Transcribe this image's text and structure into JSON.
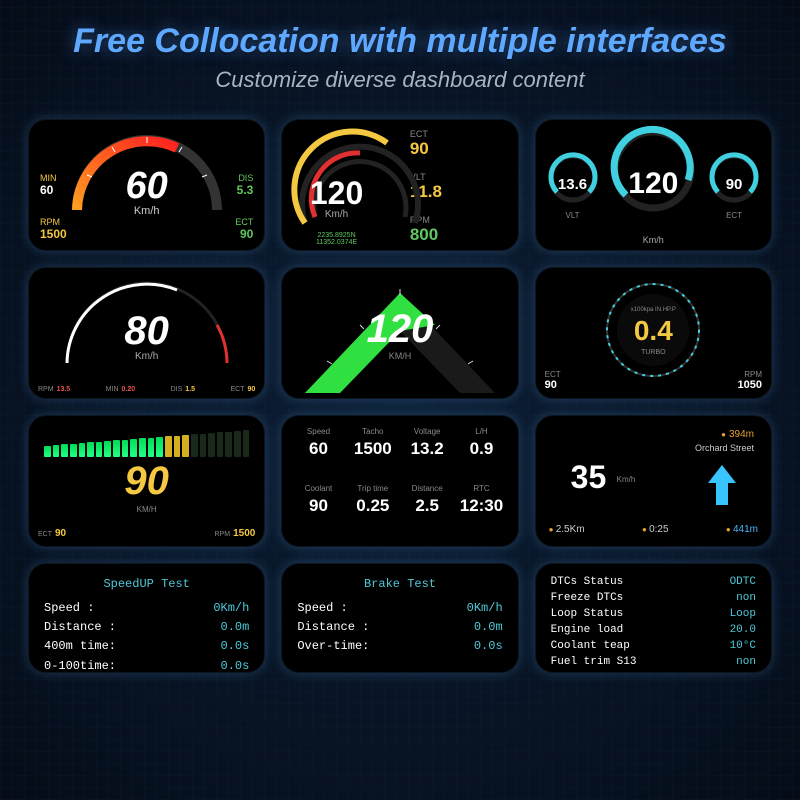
{
  "header": {
    "title": "Free Collocation with multiple interfaces",
    "subtitle": "Customize diverse dashboard content",
    "title_color": "#5fa8ff",
    "subtitle_color": "#a8b4c2"
  },
  "cards": {
    "c1": {
      "speed": "60",
      "unit": "Km/h",
      "min_label": "MIN",
      "min_value": "60",
      "dis_label": "DIS",
      "dis_value": "5.3",
      "rpm_label": "RPM",
      "rpm_value": "1500",
      "ect_label": "ECT",
      "ect_value": "90",
      "arc_color_start": "#ff2020",
      "arc_color_end": "#ffa020"
    },
    "c2": {
      "speed": "120",
      "unit": "Km/h",
      "coord1": "2235.8925N",
      "coord2": "11352.0374E",
      "ect_label": "ECT",
      "ect_value": "90",
      "vlt_label": "VLT",
      "vlt_value": "11.8",
      "rpm_label": "RPM",
      "rpm_value": "800",
      "arc_outer": "#f5c842",
      "arc_inner": "#e03030"
    },
    "c3": {
      "left_value": "13.6",
      "left_label": "VLT",
      "left_color": "#40d0e0",
      "center_value": "120",
      "center_label": "Km/h",
      "center_color": "#40d0e0",
      "right_value": "90",
      "right_label": "ECT",
      "right_color": "#40d0e0"
    },
    "c4": {
      "speed": "80",
      "unit": "Km/h",
      "bottom": [
        {
          "label": "RPM",
          "value": "13.5",
          "color": "#e85050"
        },
        {
          "label": "MIN",
          "value": "0.20",
          "color": "#e85050"
        },
        {
          "label": "DIS",
          "value": "1.5",
          "color": "#f5c842"
        },
        {
          "label": "ECT",
          "value": "90",
          "color": "#f5c842"
        }
      ]
    },
    "c5": {
      "speed": "120",
      "unit": "KM/H",
      "fill_color": "#30e040"
    },
    "c6": {
      "value": "0.4",
      "pre": "x100kpa IN.HP.P",
      "turbo": "TURBO",
      "ect_label": "ECT",
      "ect_value": "90",
      "rpm_label": "RPM",
      "rpm_value": "1050"
    },
    "c7": {
      "speed": "90",
      "unit": "KM/H",
      "ect_label": "ECT",
      "ect_value": "90",
      "rpm_label": "RPM",
      "rpm_value": "1500",
      "segments_on": 14,
      "segments_total": 24
    },
    "c8": {
      "cells": [
        {
          "label": "Speed",
          "value": "60"
        },
        {
          "label": "Tacho",
          "value": "1500"
        },
        {
          "label": "Voltage",
          "value": "13.2"
        },
        {
          "label": "L/H",
          "value": "0.9"
        },
        {
          "label": "Coolant",
          "value": "90"
        },
        {
          "label": "Trip time",
          "value": "0.25"
        },
        {
          "label": "Distance",
          "value": "2.5"
        },
        {
          "label": "RTC",
          "value": "12:30"
        }
      ]
    },
    "c9": {
      "dist": "394m",
      "street": "Orchard Street",
      "speed": "35",
      "unit": "Km/h",
      "trip": "2.5Km",
      "time": "0:25",
      "alt": "441m",
      "arrow_color": "#38c4ff"
    },
    "c10": {
      "title": "SpeedUP Test",
      "rows": [
        {
          "k": "Speed    :",
          "v": "0Km/h"
        },
        {
          "k": "Distance :",
          "v": "0.0m"
        },
        {
          "k": "400m time:",
          "v": "0.0s"
        },
        {
          "k": "0-100time:",
          "v": "0.0s"
        }
      ]
    },
    "c11": {
      "title": "Brake Test",
      "rows": [
        {
          "k": "Speed    :",
          "v": "0Km/h"
        },
        {
          "k": "Distance :",
          "v": "0.0m"
        },
        {
          "k": "Over-time:",
          "v": "0.0s"
        }
      ]
    },
    "c12": {
      "rows": [
        {
          "k": "DTCs Status",
          "v": "ODTC"
        },
        {
          "k": "Freeze DTCs",
          "v": "non"
        },
        {
          "k": "Loop Status",
          "v": "Loop"
        },
        {
          "k": "Engine load",
          "v": "20.0"
        },
        {
          "k": "Coolant teap",
          "v": "10°C"
        },
        {
          "k": "Fuel trim S13",
          "v": "non"
        }
      ]
    }
  },
  "colors": {
    "bg": "#0a1628",
    "card_bg": "#000000",
    "white": "#ffffff",
    "yellow": "#f5c842",
    "green": "#5fc85f",
    "cyan": "#4fc8d8",
    "orange": "#e8a030",
    "blue": "#38c4ff"
  }
}
